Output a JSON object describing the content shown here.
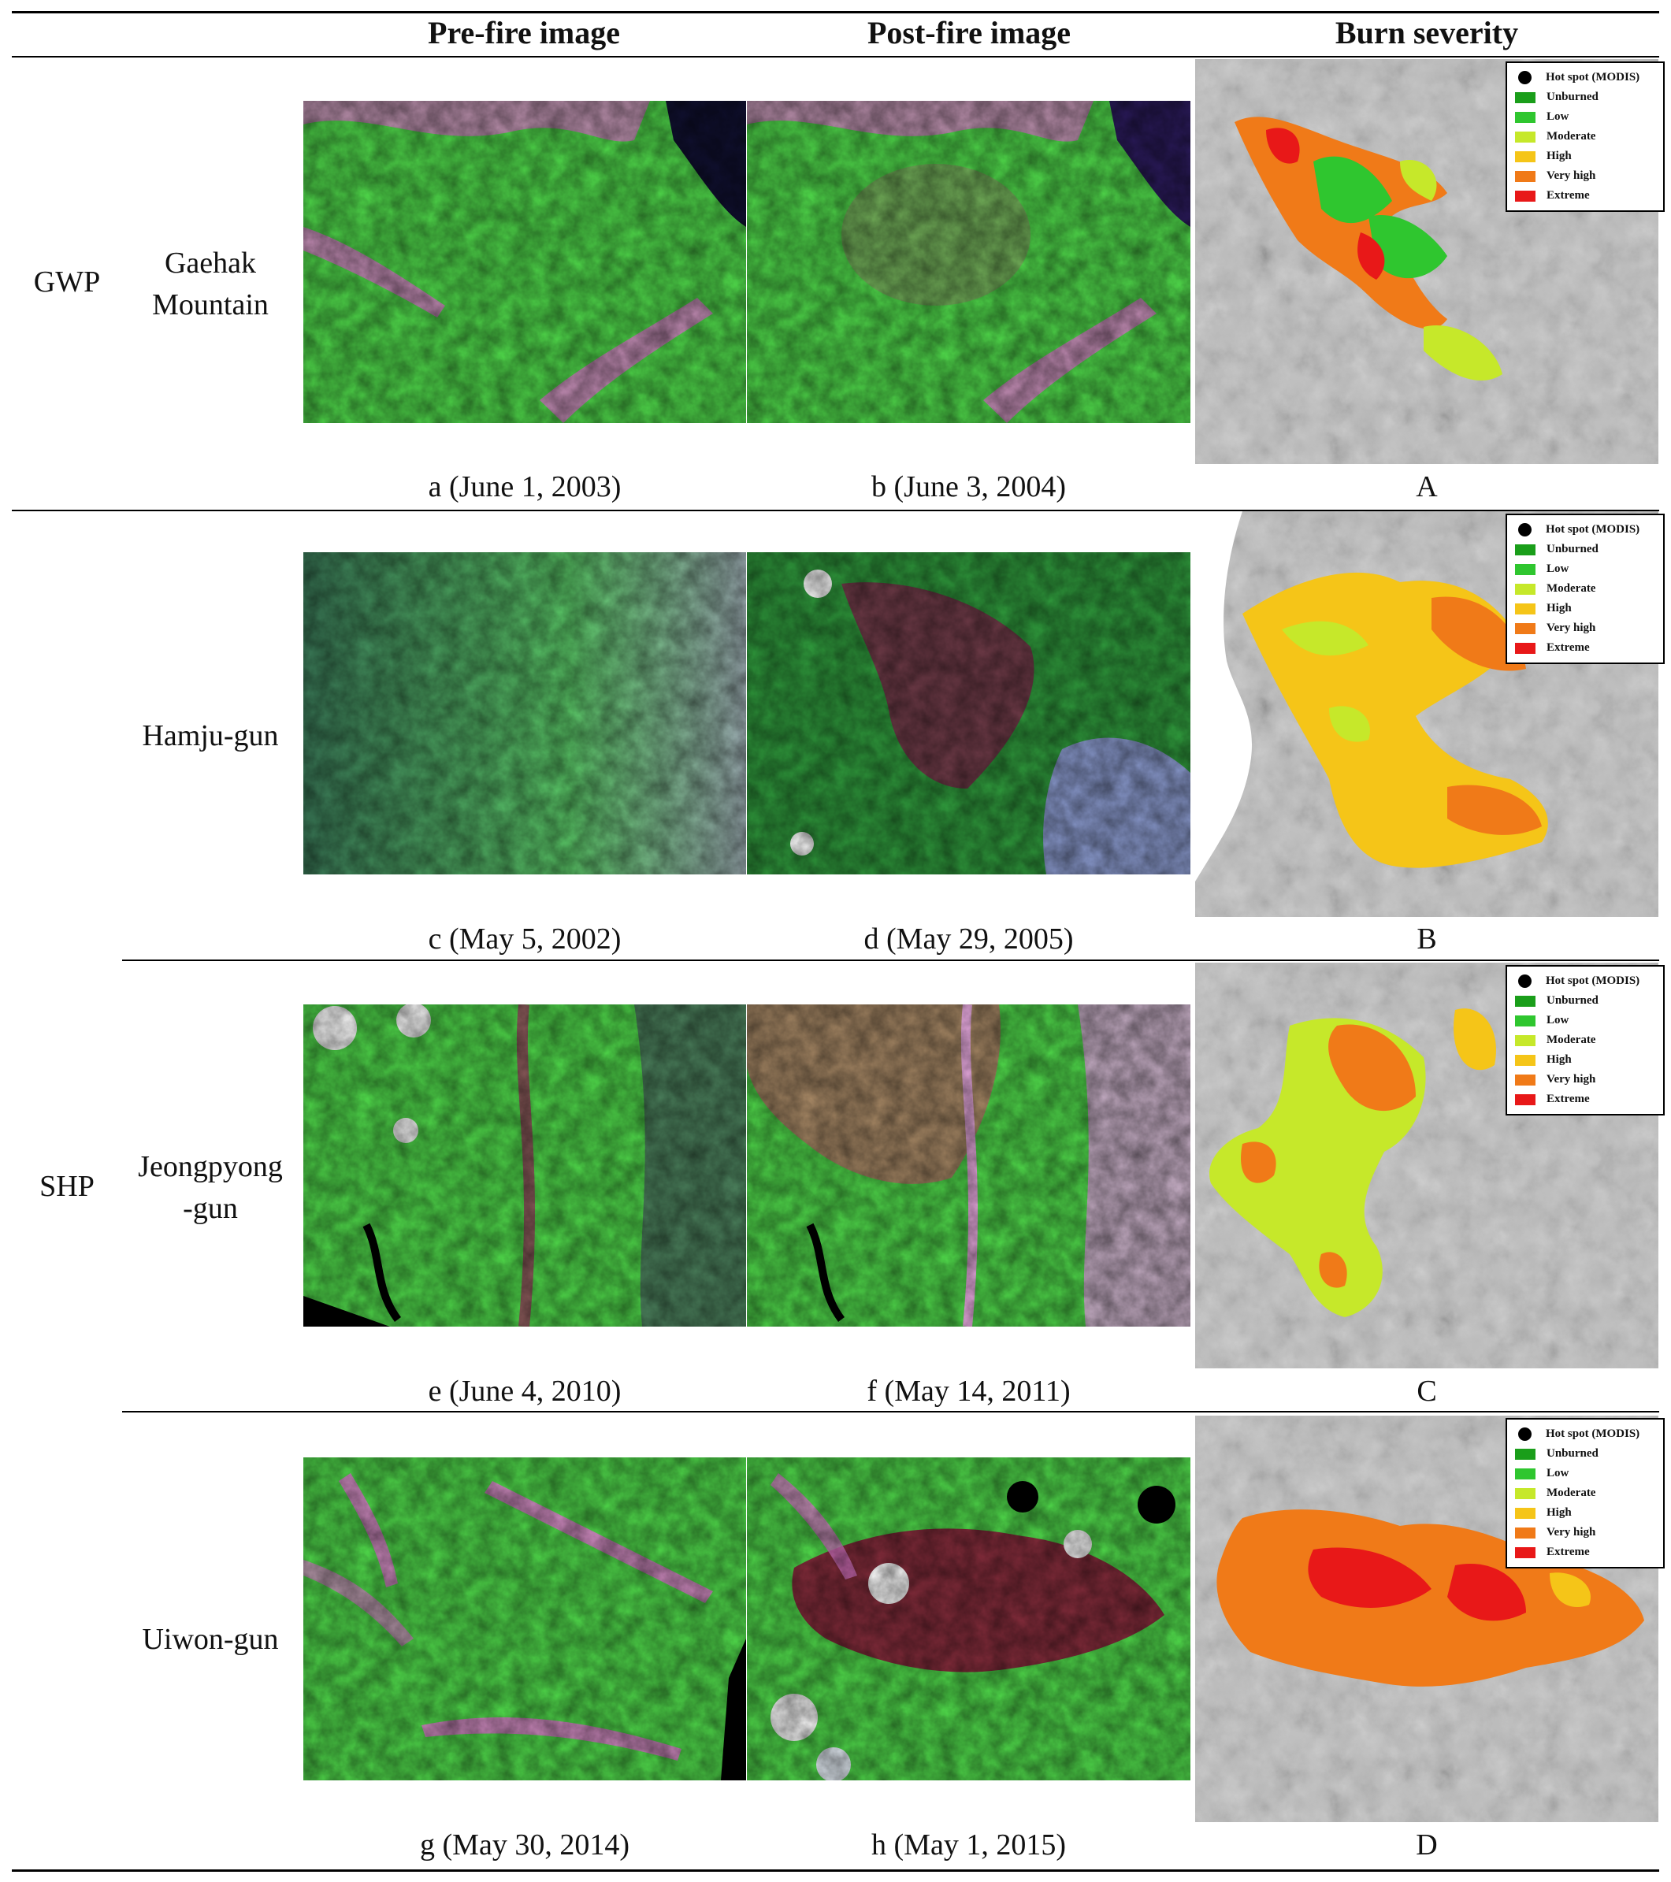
{
  "headers": {
    "pre_fire": "Pre-fire image",
    "post_fire": "Post-fire image",
    "burn_severity": "Burn severity"
  },
  "groups": [
    {
      "label": "GWP"
    },
    {
      "label": "SHP"
    }
  ],
  "rows": [
    {
      "site": "Gaehak Mountain",
      "pre_caption": "a (June 1, 2003)",
      "post_caption": "b (June 3, 2004)",
      "severity_caption": "A"
    },
    {
      "site": "Hamju-gun",
      "pre_caption": "c (May 5, 2002)",
      "post_caption": "d (May 29, 2005)",
      "severity_caption": "B"
    },
    {
      "site": "Jeongpyong -gun",
      "pre_caption": "e (June 4, 2010)",
      "post_caption": "f (May 14, 2011)",
      "severity_caption": "C"
    },
    {
      "site": "Uiwon-gun",
      "pre_caption": "g (May 30, 2014)",
      "post_caption": "h (May 1, 2015)",
      "severity_caption": "D"
    }
  ],
  "legend": {
    "items": [
      {
        "label": "Hot spot (MODIS)",
        "type": "dot",
        "color": "#000000"
      },
      {
        "label": "Unburned",
        "type": "box",
        "color": "#1a9e1a"
      },
      {
        "label": "Low",
        "type": "box",
        "color": "#2fc62f"
      },
      {
        "label": "Moderate",
        "type": "box",
        "color": "#c6e82a"
      },
      {
        "label": "High",
        "type": "box",
        "color": "#f5c518"
      },
      {
        "label": "Very high",
        "type": "box",
        "color": "#f07a18"
      },
      {
        "label": "Extreme",
        "type": "box",
        "color": "#e81818"
      }
    ]
  }
}
